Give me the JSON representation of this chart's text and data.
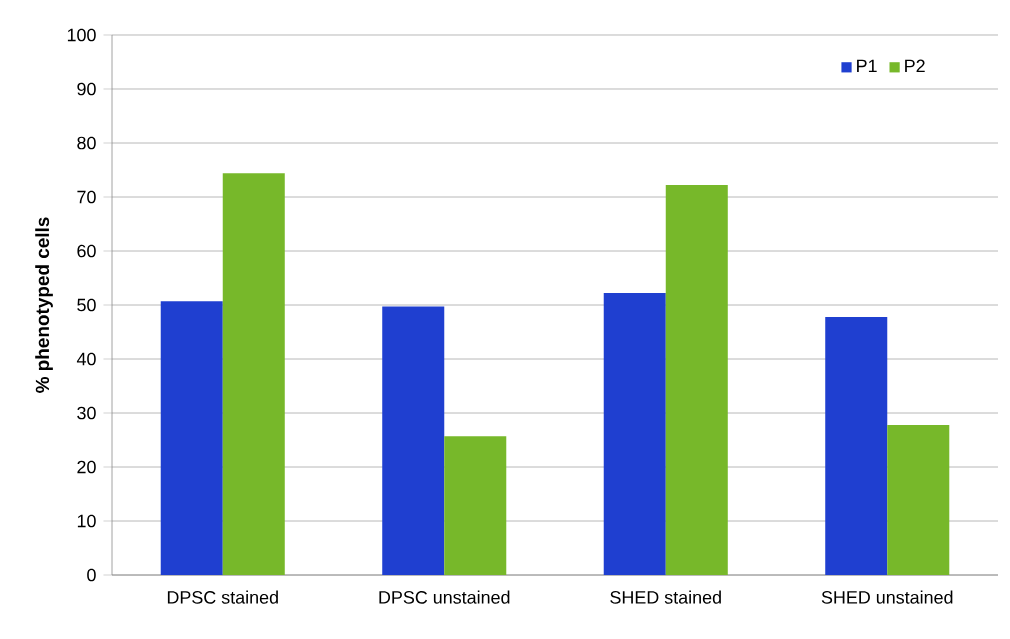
{
  "chart_data": {
    "type": "bar",
    "ylabel": "% phenotyped cells",
    "categories": [
      "DPSC stained",
      "DPSC unstained",
      "SHED stained",
      "SHED unstained"
    ],
    "series": [
      {
        "name": "P1",
        "color": "#1f3fd0",
        "values": [
          50.7,
          49.7,
          52.2,
          47.8
        ]
      },
      {
        "name": "P2",
        "color": "#77b82a",
        "values": [
          74.4,
          25.7,
          72.2,
          27.8
        ]
      }
    ],
    "ylim": [
      0,
      100
    ],
    "yticks": [
      0,
      10,
      20,
      30,
      40,
      50,
      60,
      70,
      80,
      90,
      100
    ],
    "grid": "y",
    "legend": "top right"
  }
}
